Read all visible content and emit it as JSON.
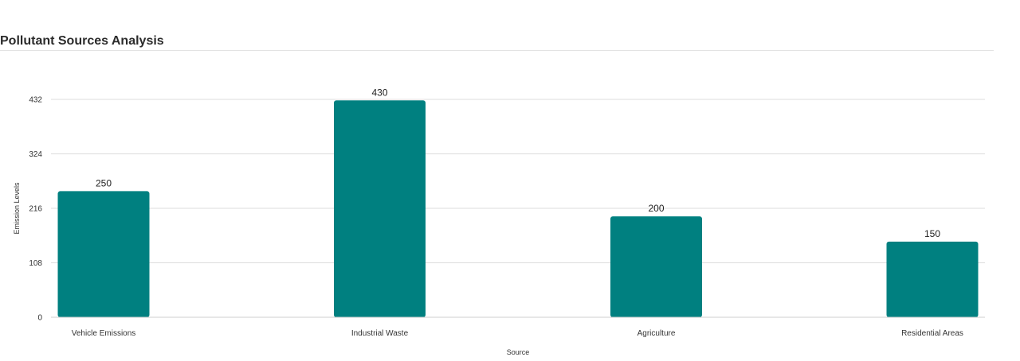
{
  "header": {
    "title": "Pollutant Sources Analysis"
  },
  "chart_data": {
    "type": "bar",
    "categories": [
      "Vehicle Emissions",
      "Industrial Waste",
      "Agriculture",
      "Residential Areas"
    ],
    "values": [
      250,
      430,
      200,
      150
    ],
    "xlabel": "Source",
    "ylabel": "Emission Levels",
    "ylim": [
      0,
      432
    ],
    "yticks": [
      0,
      108,
      216,
      324,
      432
    ],
    "grid": true,
    "data_labels": true,
    "bar_color": "#008080",
    "legend": "none"
  }
}
